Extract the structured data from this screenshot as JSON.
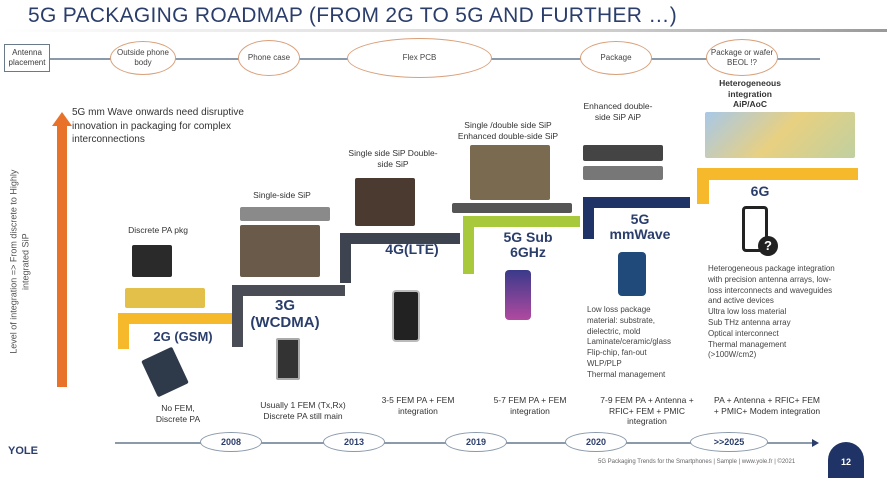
{
  "title": "5G PACKAGING ROADMAP (FROM 2G TO 5G AND FURTHER …)",
  "antenna": {
    "label": "Antenna placement",
    "stages": [
      "Outside phone body",
      "Phone case",
      "Flex PCB",
      "Package",
      "Package or wafer BEOL !?"
    ]
  },
  "axis_label": "Level of integration => From discrete to Highly integrated SiP",
  "note": "5G mm Wave onwards need disruptive innovation in packaging for complex interconnections",
  "generations": [
    {
      "name": "2G (GSM)",
      "pkg": "Discrete PA pkg",
      "fem": "No FEM, Discrete PA",
      "year": "2008"
    },
    {
      "name": "3G (WCDMA)",
      "pkg": "Single-side SiP",
      "fem": "Usually 1 FEM (Tx,Rx) Discrete PA still main",
      "year": "2013"
    },
    {
      "name": "4G(LTE)",
      "pkg": "Single side SiP Double-side SiP",
      "fem": "3-5 FEM PA + FEM integration",
      "year": "2019"
    },
    {
      "name": "5G Sub 6GHz",
      "pkg": "Single /double side SiP Enhanced double-side SiP",
      "fem": "5-7 FEM PA + FEM integration",
      "year": "2020"
    },
    {
      "name": "5G mmWave",
      "pkg": "Enhanced double-side SiP AiP",
      "fem": "7-9 FEM PA + Antenna + RFIC+ FEM + PMIC integration",
      "desc": [
        "Low loss package",
        "material: substrate,",
        "dielectric, mold",
        "Laminate/ceramic/glass",
        "Flip-chip, fan-out",
        "WLP/PLP",
        "Thermal management"
      ]
    },
    {
      "name": "6G",
      "pkg": "Heterogeneous integration AiP/AoC",
      "fem": "PA + Antenna + RFIC+ FEM + PMIC+ Modem integration",
      "year": ">>2025",
      "desc": [
        "Heterogeneous package integration",
        "with precision antenna arrays, low-",
        "loss interconnects and waveguides",
        "and active devices",
        "Ultra low loss material",
        "Sub THz antenna array",
        "Optical interconnect",
        "Thermal management",
        "(>100W/cm2)"
      ]
    }
  ],
  "logo": "YOLE Développement",
  "footer": "5G Packaging Trends for the Smartphones | Sample | www.yole.fr | ©2021",
  "page_number": "12",
  "colors": {
    "title": "#2b3e6b",
    "yellow": "#f6b92b",
    "gray": "#4a4d55",
    "green": "#a7c93b",
    "navy": "#1f3366",
    "arrow": "#e8722a"
  }
}
